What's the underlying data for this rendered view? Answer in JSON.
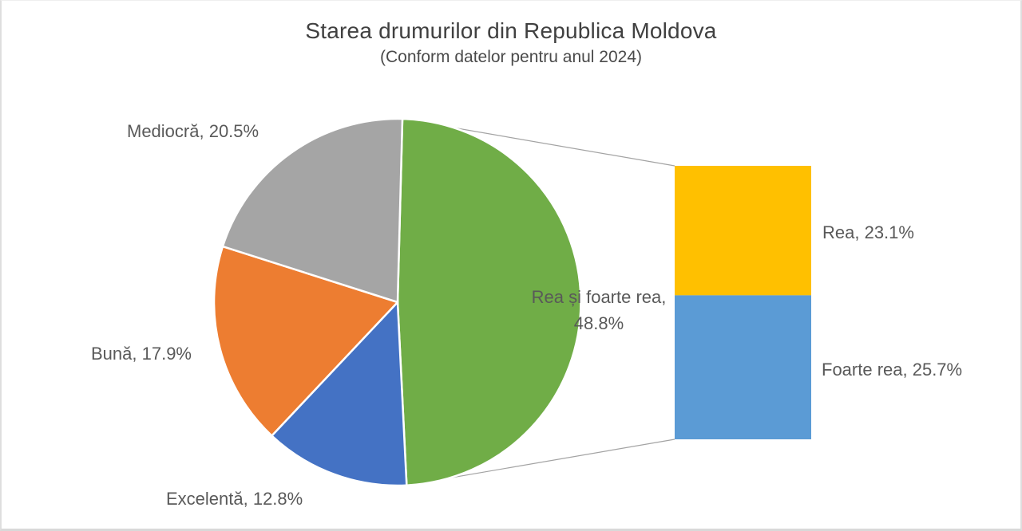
{
  "chart_data": {
    "type": "bar-of-pie",
    "title": "Starea drumurilor din Republica Moldova",
    "subtitle": "(Conform datelor pentru anul 2024)",
    "label_format": "{label}, {value}%",
    "text_color": "#595959",
    "pie": {
      "start_angle_deg": 1.5,
      "slices": [
        {
          "label": "Rea și foarte rea",
          "value": 48.8,
          "color": "#70AD47"
        },
        {
          "label": "Excelentă",
          "value": 12.8,
          "color": "#4472C4"
        },
        {
          "label": "Bună",
          "value": 17.9,
          "color": "#ED7D31"
        },
        {
          "label": "Mediocră",
          "value": 20.5,
          "color": "#A5A5A5"
        }
      ]
    },
    "bar": {
      "expanded_slice": "Rea și foarte rea",
      "segments": [
        {
          "label": "Rea",
          "value": 23.1,
          "color": "#FFC000"
        },
        {
          "label": "Foarte rea",
          "value": 25.7,
          "color": "#5B9BD5"
        }
      ]
    },
    "connector_color": "#a3a3a3"
  }
}
